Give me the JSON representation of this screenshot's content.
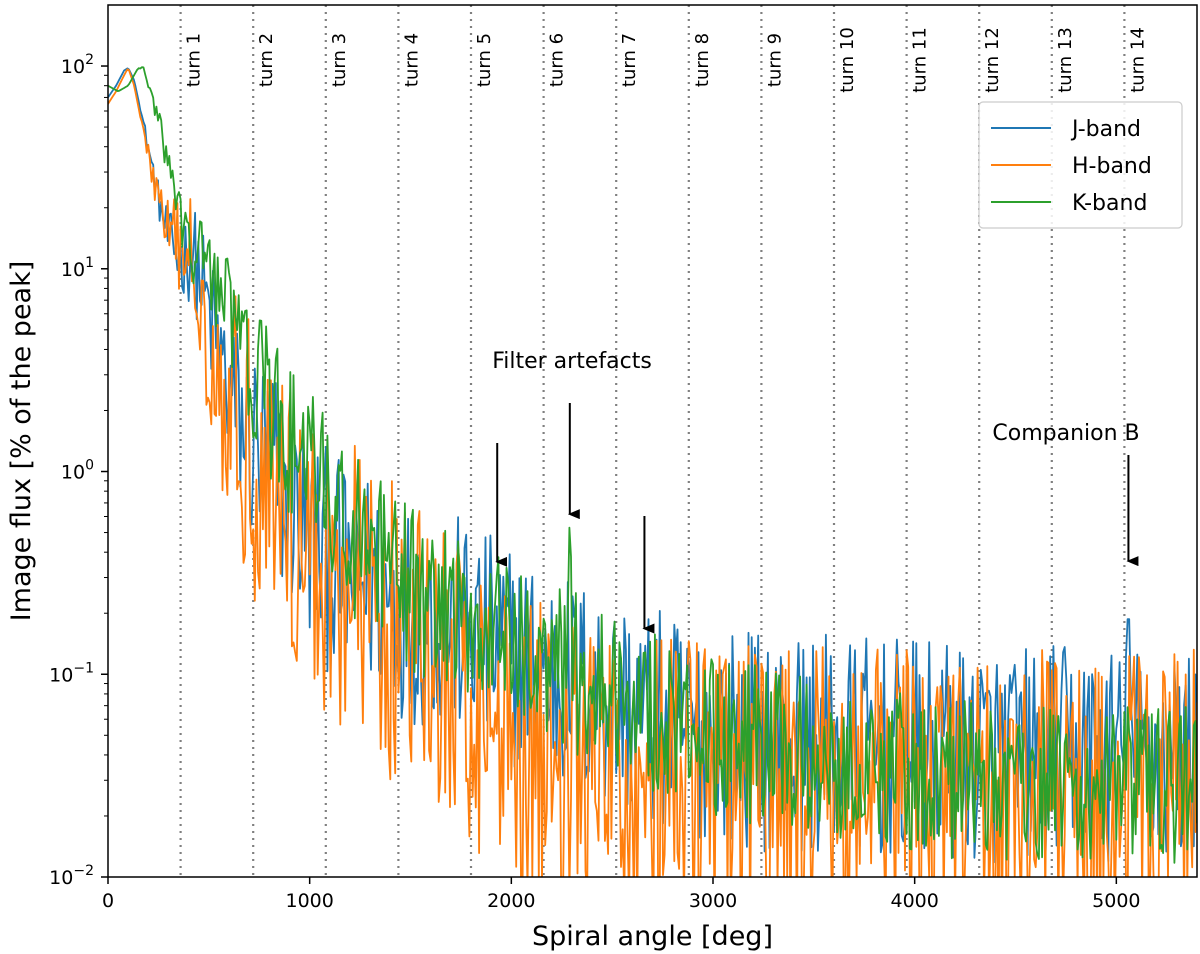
{
  "chart_data": {
    "type": "line",
    "title": "",
    "xlabel": "Spiral angle [deg]",
    "ylabel": "Image flux [% of the peak]",
    "xlim": [
      0,
      5400
    ],
    "ylim": [
      0.01,
      200
    ],
    "yscale": "log",
    "x_ticks": [
      0,
      1000,
      2000,
      3000,
      4000,
      5000
    ],
    "y_ticks": [
      {
        "value": 0.01,
        "base": "10",
        "exp": "−2"
      },
      {
        "value": 0.1,
        "base": "10",
        "exp": "−1"
      },
      {
        "value": 1,
        "base": "10",
        "exp": "0"
      },
      {
        "value": 10,
        "base": "10",
        "exp": "1"
      },
      {
        "value": 100,
        "base": "10",
        "exp": "2"
      }
    ],
    "turns": [
      {
        "angle": 360,
        "label": "turn 1"
      },
      {
        "angle": 720,
        "label": "turn 2"
      },
      {
        "angle": 1080,
        "label": "turn 3"
      },
      {
        "angle": 1440,
        "label": "turn 4"
      },
      {
        "angle": 1800,
        "label": "turn 5"
      },
      {
        "angle": 2160,
        "label": "turn 6"
      },
      {
        "angle": 2520,
        "label": "turn 7"
      },
      {
        "angle": 2880,
        "label": "turn 8"
      },
      {
        "angle": 3240,
        "label": "turn 9"
      },
      {
        "angle": 3600,
        "label": "turn 10"
      },
      {
        "angle": 3960,
        "label": "turn 11"
      },
      {
        "angle": 4320,
        "label": "turn 12"
      },
      {
        "angle": 4680,
        "label": "turn 13"
      },
      {
        "angle": 5040,
        "label": "turn 14"
      }
    ],
    "series": [
      {
        "name": "J-band",
        "color": "#1f77b4",
        "noise": 0.55,
        "anchors": [
          [
            0,
            70
          ],
          [
            40,
            80
          ],
          [
            80,
            95
          ],
          [
            100,
            98
          ],
          [
            130,
            85
          ],
          [
            180,
            50
          ],
          [
            250,
            22
          ],
          [
            300,
            14
          ],
          [
            360,
            11
          ],
          [
            420,
            12
          ],
          [
            470,
            8
          ],
          [
            520,
            5
          ],
          [
            600,
            2.5
          ],
          [
            700,
            1.4
          ],
          [
            800,
            1.05
          ],
          [
            900,
            0.75
          ],
          [
            1000,
            0.48
          ],
          [
            1100,
            0.35
          ],
          [
            1300,
            0.28
          ],
          [
            1500,
            0.2
          ],
          [
            1700,
            0.18
          ],
          [
            1900,
            0.14
          ],
          [
            2100,
            0.11
          ],
          [
            2300,
            0.09
          ],
          [
            2500,
            0.075
          ],
          [
            2700,
            0.06
          ],
          [
            3000,
            0.05
          ],
          [
            3500,
            0.045
          ],
          [
            4000,
            0.042
          ],
          [
            4500,
            0.04
          ],
          [
            5000,
            0.04
          ],
          [
            5400,
            0.04
          ]
        ],
        "spikes": [
          [
            5060,
            0.22
          ]
        ]
      },
      {
        "name": "H-band",
        "color": "#ff7f0e",
        "noise": 0.75,
        "anchors": [
          [
            0,
            65
          ],
          [
            40,
            75
          ],
          [
            80,
            90
          ],
          [
            100,
            98
          ],
          [
            130,
            80
          ],
          [
            180,
            45
          ],
          [
            250,
            22
          ],
          [
            310,
            14
          ],
          [
            360,
            12
          ],
          [
            420,
            11.5
          ],
          [
            470,
            7
          ],
          [
            520,
            3.5
          ],
          [
            600,
            2.2
          ],
          [
            700,
            1.3
          ],
          [
            800,
            1.0
          ],
          [
            900,
            0.6
          ],
          [
            1000,
            0.38
          ],
          [
            1100,
            0.3
          ],
          [
            1300,
            0.22
          ],
          [
            1500,
            0.13
          ],
          [
            1700,
            0.09
          ],
          [
            1900,
            0.065
          ],
          [
            2100,
            0.045
          ],
          [
            2300,
            0.035
          ],
          [
            2500,
            0.03
          ],
          [
            3000,
            0.027
          ],
          [
            3500,
            0.025
          ],
          [
            4000,
            0.025
          ],
          [
            4500,
            0.025
          ],
          [
            5000,
            0.025
          ],
          [
            5400,
            0.025
          ]
        ],
        "spikes": []
      },
      {
        "name": "K-band",
        "color": "#2ca02c",
        "noise": 0.4,
        "anchors": [
          [
            0,
            80
          ],
          [
            50,
            75
          ],
          [
            100,
            80
          ],
          [
            150,
            98
          ],
          [
            180,
            95
          ],
          [
            220,
            70
          ],
          [
            280,
            40
          ],
          [
            360,
            18
          ],
          [
            420,
            11
          ],
          [
            490,
            12.5
          ],
          [
            530,
            9
          ],
          [
            600,
            6
          ],
          [
            700,
            3.5
          ],
          [
            800,
            2.0
          ],
          [
            900,
            1.4
          ],
          [
            1000,
            1.0
          ],
          [
            1100,
            0.75
          ],
          [
            1200,
            0.5
          ],
          [
            1400,
            0.32
          ],
          [
            1600,
            0.22
          ],
          [
            1800,
            0.19
          ],
          [
            2000,
            0.14
          ],
          [
            2200,
            0.12
          ],
          [
            2400,
            0.09
          ],
          [
            2600,
            0.075
          ],
          [
            2800,
            0.06
          ],
          [
            3000,
            0.05
          ],
          [
            3400,
            0.04
          ],
          [
            3800,
            0.035
          ],
          [
            4200,
            0.03
          ],
          [
            4800,
            0.028
          ],
          [
            5400,
            0.028
          ]
        ],
        "spikes": [
          [
            1930,
            0.32
          ],
          [
            2290,
            0.55
          ],
          [
            2660,
            0.15
          ]
        ]
      }
    ],
    "annotations": [
      {
        "text": "Filter artefacts",
        "arrows": [
          {
            "x": 1930,
            "y": 0.32
          },
          {
            "x": 2290,
            "y": 0.55
          },
          {
            "x": 2660,
            "y": 0.15
          }
        ]
      },
      {
        "text": "Companion B",
        "arrows": [
          {
            "x": 5060,
            "y": 0.33
          }
        ]
      }
    ],
    "legend_position": "upper-right"
  }
}
